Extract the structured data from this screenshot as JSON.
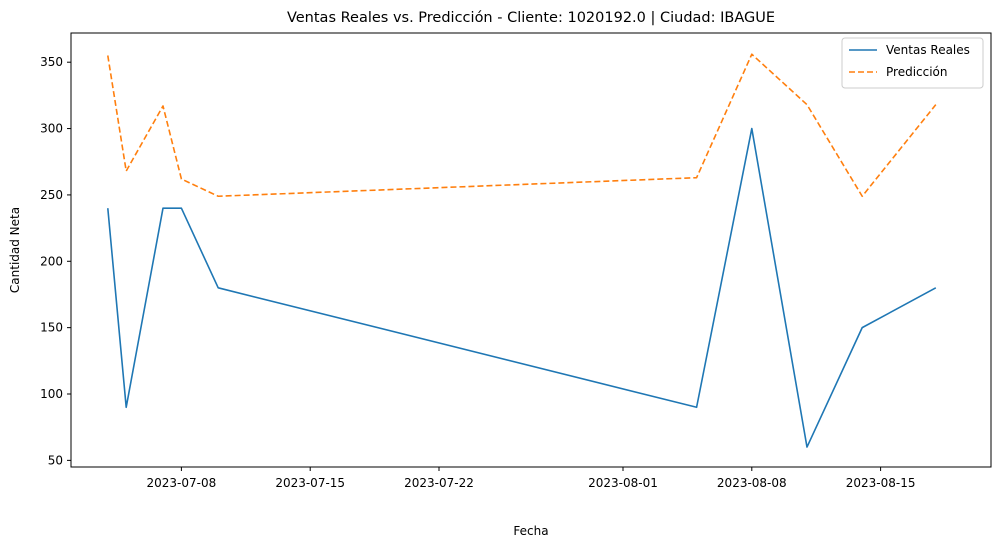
{
  "chart_data": {
    "type": "line",
    "title": "Ventas Reales vs. Predicción - Cliente: 1020192.0 | Ciudad: IBAGUE",
    "xlabel": "Fecha",
    "ylabel": "Cantidad Neta",
    "x_type": "date",
    "xlim": [
      "2023-07-02",
      "2023-08-21"
    ],
    "ylim": [
      45,
      372
    ],
    "x_ticks": [
      "2023-07-08",
      "2023-07-15",
      "2023-07-22",
      "2023-08-01",
      "2023-08-08",
      "2023-08-15"
    ],
    "y_ticks": [
      50,
      100,
      150,
      200,
      250,
      300,
      350
    ],
    "grid": false,
    "legend_position": "top-right",
    "x": [
      "2023-07-04",
      "2023-07-05",
      "2023-07-07",
      "2023-07-08",
      "2023-07-10",
      "2023-08-05",
      "2023-08-08",
      "2023-08-11",
      "2023-08-14",
      "2023-08-18"
    ],
    "series": [
      {
        "name": "Ventas Reales",
        "color": "#1f77b4",
        "style": "solid",
        "values": [
          240,
          90,
          240,
          240,
          180,
          90,
          300,
          60,
          150,
          180
        ]
      },
      {
        "name": "Predicción",
        "color": "#ff7f0e",
        "style": "dashed",
        "values": [
          355,
          268,
          317,
          262,
          249,
          263,
          356,
          318,
          249,
          318
        ]
      }
    ]
  }
}
